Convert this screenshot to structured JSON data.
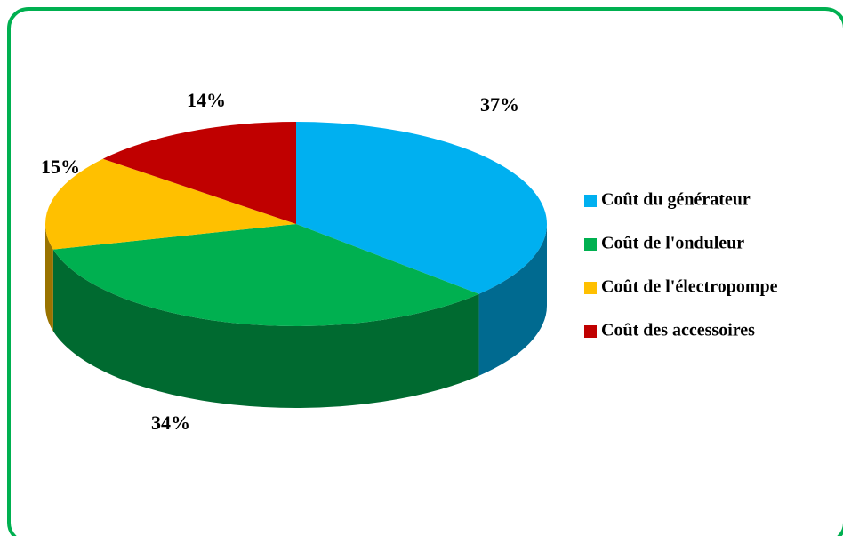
{
  "chart_data": {
    "type": "pie3d",
    "categories": [
      "Coût du générateur",
      "Coût de l'onduleur",
      "Coût de l'électropompe",
      "Coût des accessoires"
    ],
    "values": [
      37,
      34,
      15,
      14
    ],
    "value_labels": [
      "37%",
      "34%",
      "15%",
      "14%"
    ],
    "colors": [
      "#00b0f0",
      "#00b050",
      "#ffc000",
      "#c00000"
    ],
    "legend": "right"
  }
}
